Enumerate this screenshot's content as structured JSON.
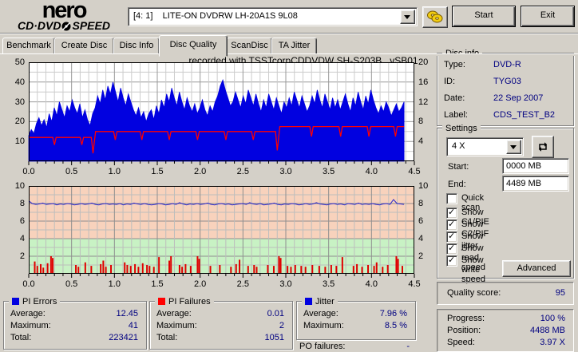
{
  "header": {
    "logo_top": "nero",
    "logo_bottom_left": "CD·DVD",
    "logo_bottom_right": "SPEED",
    "drive_selector": "[4: 1]    LITE-ON DVDRW LH-20A1S 9L08",
    "start_button": "Start",
    "exit_button": "Exit"
  },
  "tabs": [
    {
      "label": "Benchmark",
      "active": false
    },
    {
      "label": "Create Disc",
      "active": false
    },
    {
      "label": "Disc Info",
      "active": false
    },
    {
      "label": "Disc Quality",
      "active": true
    },
    {
      "label": "ScanDisc",
      "active": false
    },
    {
      "label": "TA Jitter",
      "active": false
    }
  ],
  "chart_title": "recorded with TSSTcorpCDDVDW SH-S203B   vSB01",
  "chart_data": [
    {
      "type": "area",
      "title": "PI Errors scan",
      "xlabel": "GB",
      "xlim": [
        0,
        4.5
      ],
      "x_ticks": [
        "0.0",
        "0.5",
        "1.0",
        "1.5",
        "2.0",
        "2.5",
        "3.0",
        "3.5",
        "4.0",
        "4.5"
      ],
      "left_axis": {
        "max": 50,
        "ticks": [
          10,
          20,
          30,
          40,
          50
        ]
      },
      "right_axis": {
        "max": 20,
        "ticks": [
          4,
          8,
          12,
          16,
          20
        ]
      },
      "grid": true,
      "series": [
        {
          "name": "PI Errors",
          "type": "area",
          "axis": "left",
          "color": "#0101e0",
          "x_end": 4.38,
          "values": [
            13,
            16,
            14,
            19,
            22,
            18,
            21,
            17,
            24,
            20,
            27,
            23,
            30,
            26,
            22,
            28,
            25,
            31,
            27,
            24,
            29,
            22,
            26,
            21,
            18,
            24,
            27,
            33,
            29,
            36,
            31,
            38,
            34,
            40,
            35,
            30,
            37,
            32,
            28,
            34,
            30,
            26,
            23,
            27,
            22,
            25,
            20,
            24,
            26,
            21,
            28,
            24,
            31,
            27,
            34,
            30,
            37,
            32,
            28,
            35,
            30,
            26,
            32,
            28,
            25,
            29,
            24,
            27,
            31,
            26,
            23,
            28,
            25,
            30,
            33,
            38,
            41,
            36,
            32,
            28,
            30,
            35,
            31,
            27,
            33,
            29,
            36,
            32,
            28,
            34,
            29,
            25,
            31,
            27,
            34,
            30,
            26,
            32,
            28,
            24,
            30,
            27,
            32,
            28,
            35,
            31,
            27,
            33,
            29,
            25,
            28,
            33,
            29,
            36,
            31,
            27,
            34,
            30,
            26,
            32,
            27,
            31,
            26,
            30,
            34,
            29,
            25,
            32,
            28,
            35,
            30,
            26,
            33,
            29,
            36,
            31,
            27,
            24,
            28,
            25,
            30,
            27,
            23,
            26,
            29,
            25,
            27,
            30
          ]
        },
        {
          "name": "Write speed",
          "type": "line",
          "axis": "right",
          "color": "#ff0000",
          "points": [
            [
              0,
              4.8
            ],
            [
              0.28,
              4.8
            ],
            [
              0.3,
              3.3
            ],
            [
              0.32,
              4.8
            ],
            [
              0.6,
              4.8
            ],
            [
              0.62,
              3.3
            ],
            [
              0.64,
              4.8
            ],
            [
              0.73,
              4.8
            ],
            [
              0.75,
              1.6
            ],
            [
              0.78,
              6.0
            ],
            [
              0.99,
              6.0
            ],
            [
              1.01,
              4.3
            ],
            [
              1.03,
              6.0
            ],
            [
              1.3,
              6.0
            ],
            [
              1.32,
              4.3
            ],
            [
              1.34,
              6.0
            ],
            [
              1.62,
              6.0
            ],
            [
              1.64,
              4.3
            ],
            [
              1.66,
              6.0
            ],
            [
              1.95,
              6.0
            ],
            [
              1.97,
              4.3
            ],
            [
              1.99,
              6.0
            ],
            [
              2.28,
              6.0
            ],
            [
              2.3,
              4.3
            ],
            [
              2.32,
              6.0
            ],
            [
              2.6,
              6.0
            ],
            [
              2.62,
              4.3
            ],
            [
              2.64,
              6.0
            ],
            [
              2.88,
              6.0
            ],
            [
              2.9,
              2.2
            ],
            [
              2.93,
              7.0
            ],
            [
              3.28,
              7.0
            ],
            [
              3.3,
              5.0
            ],
            [
              3.32,
              7.0
            ],
            [
              3.62,
              7.0
            ],
            [
              3.64,
              5.0
            ],
            [
              3.66,
              7.0
            ],
            [
              3.95,
              7.0
            ],
            [
              3.97,
              5.0
            ],
            [
              3.99,
              7.0
            ],
            [
              4.26,
              7.0
            ],
            [
              4.28,
              5.0
            ],
            [
              4.3,
              7.0
            ],
            [
              4.38,
              7.0
            ]
          ]
        }
      ]
    },
    {
      "type": "line",
      "title": "Jitter and PI Failures scan",
      "xlabel": "GB",
      "xlim": [
        0,
        4.5
      ],
      "x_ticks": [
        "0.0",
        "0.5",
        "1.0",
        "1.5",
        "2.0",
        "2.5",
        "3.0",
        "3.5",
        "4.0",
        "4.5"
      ],
      "left_axis": {
        "max": 10,
        "ticks": [
          2,
          4,
          6,
          8,
          10
        ]
      },
      "right_axis": {
        "max": 10,
        "ticks": [
          2,
          4,
          6,
          8,
          10
        ]
      },
      "grid": true,
      "bands": [
        {
          "from": 0,
          "to": 4,
          "color": "#c8f2c4"
        },
        {
          "from": 4,
          "to": 10,
          "color": "#f8d2bc"
        }
      ],
      "series": [
        {
          "name": "Jitter",
          "type": "line_values",
          "axis": "left",
          "color": "#2222cc",
          "x_end": 4.38,
          "values": [
            8.3,
            8.0,
            7.9,
            7.95,
            8.05,
            7.9,
            7.95,
            8.0,
            7.85,
            7.95,
            7.9,
            8.0,
            7.95,
            7.85,
            7.9,
            8.0,
            7.9,
            7.95,
            8.05,
            7.9,
            7.85,
            7.95,
            8.0,
            7.9,
            7.95,
            7.9,
            8.0,
            7.85,
            7.95,
            7.9,
            8.05,
            7.95,
            7.9,
            8.0,
            7.9,
            7.85,
            7.9,
            8.0,
            7.95,
            7.85,
            7.9,
            8.0,
            7.9,
            8.1,
            7.95,
            7.85,
            7.95,
            7.9,
            8.0,
            7.9,
            7.95,
            8.05,
            7.9,
            7.85,
            7.95,
            8.0,
            7.9,
            7.95,
            7.85,
            7.9,
            7.95,
            8.0,
            7.9,
            8.1,
            7.95,
            7.9,
            8.0,
            7.85,
            7.9,
            7.95,
            8.05,
            7.9,
            7.85,
            7.95,
            7.9,
            8.0,
            7.95,
            7.85,
            7.9,
            8.0,
            7.9,
            7.95,
            8.1,
            7.95,
            7.9,
            7.85,
            7.95,
            8.0,
            7.9,
            7.95,
            7.85,
            8.0,
            7.95,
            7.9,
            8.05,
            7.9,
            7.95,
            7.9,
            8.0,
            7.9,
            7.85,
            7.95,
            8.0,
            7.9,
            8.45,
            8.0,
            7.95,
            7.9
          ]
        },
        {
          "name": "PI Failures",
          "type": "bars",
          "axis": "left",
          "color": "#e00000",
          "bars": [
            [
              0.07,
              1.4
            ],
            [
              0.1,
              0.9
            ],
            [
              0.14,
              1.1
            ],
            [
              0.17,
              0.7
            ],
            [
              0.22,
              1.2
            ],
            [
              0.26,
              2.0
            ],
            [
              0.28,
              1.8
            ],
            [
              0.55,
              1.0
            ],
            [
              0.58,
              0.8
            ],
            [
              0.66,
              1.3
            ],
            [
              0.73,
              0.9
            ],
            [
              0.84,
              1.1
            ],
            [
              0.87,
              1.5
            ],
            [
              0.9,
              0.8
            ],
            [
              0.96,
              1.0
            ],
            [
              1.12,
              1.3
            ],
            [
              1.15,
              1.0
            ],
            [
              1.19,
              0.9
            ],
            [
              1.24,
              1.1
            ],
            [
              1.28,
              0.8
            ],
            [
              1.33,
              1.2
            ],
            [
              1.38,
              1.0
            ],
            [
              1.41,
              0.9
            ],
            [
              1.46,
              0.8
            ],
            [
              1.52,
              1.9
            ],
            [
              1.64,
              1.5
            ],
            [
              1.66,
              2.0
            ],
            [
              1.76,
              1.0
            ],
            [
              1.79,
              0.8
            ],
            [
              1.83,
              1.1
            ],
            [
              1.89,
              0.9
            ],
            [
              1.97,
              2.0
            ],
            [
              1.99,
              1.7
            ],
            [
              2.12,
              0.9
            ],
            [
              2.23,
              1.0
            ],
            [
              2.36,
              0.8
            ],
            [
              2.42,
              1.1
            ],
            [
              2.46,
              1.6
            ],
            [
              2.56,
              0.9
            ],
            [
              2.63,
              1.0
            ],
            [
              2.66,
              0.8
            ],
            [
              2.79,
              1.0
            ],
            [
              2.86,
              0.9
            ],
            [
              2.92,
              2.0
            ],
            [
              2.94,
              1.8
            ],
            [
              3.02,
              0.9
            ],
            [
              3.06,
              0.8
            ],
            [
              3.11,
              1.0
            ],
            [
              3.18,
              0.9
            ],
            [
              3.23,
              0.8
            ],
            [
              3.31,
              1.0
            ],
            [
              3.39,
              0.9
            ],
            [
              3.46,
              0.8
            ],
            [
              3.53,
              1.0
            ],
            [
              3.59,
              0.9
            ],
            [
              3.66,
              1.9
            ],
            [
              3.79,
              0.9
            ],
            [
              3.83,
              1.1
            ],
            [
              3.89,
              0.8
            ],
            [
              3.96,
              1.0
            ],
            [
              4.03,
              0.9
            ],
            [
              4.06,
              1.3
            ],
            [
              4.13,
              0.8
            ],
            [
              4.19,
              1.0
            ],
            [
              4.29,
              2.0
            ],
            [
              4.31,
              1.7
            ],
            [
              4.36,
              0.9
            ]
          ]
        }
      ]
    }
  ],
  "stats": {
    "pi_errors": {
      "title": "PI Errors",
      "swatch": "#0101e0",
      "rows": [
        {
          "label": "Average:",
          "value": "12.45"
        },
        {
          "label": "Maximum:",
          "value": "41"
        },
        {
          "label": "Total:",
          "value": "223421"
        }
      ]
    },
    "pi_failures": {
      "title": "PI Failures",
      "swatch": "#ff0000",
      "rows": [
        {
          "label": "Average:",
          "value": "0.01"
        },
        {
          "label": "Maximum:",
          "value": "2"
        },
        {
          "label": "Total:",
          "value": "1051"
        }
      ]
    },
    "jitter": {
      "title": "Jitter",
      "swatch": "#0101e0",
      "rows": [
        {
          "label": "Average:",
          "value": "7.96 %"
        },
        {
          "label": "Maximum:",
          "value": "8.5 %"
        }
      ]
    },
    "po_failures": {
      "label": "PO failures:",
      "value": "-"
    }
  },
  "disc_info": {
    "title": "Disc info",
    "rows": [
      {
        "label": "Type:",
        "value": "DVD-R"
      },
      {
        "label": "ID:",
        "value": "TYG03"
      },
      {
        "label": "Date:",
        "value": "22 Sep 2007"
      },
      {
        "label": "Label:",
        "value": "CDS_TEST_B2"
      }
    ]
  },
  "settings": {
    "title": "Settings",
    "speed_value": "4 X",
    "start_label": "Start:",
    "start_value": "0000 MB",
    "end_label": "End:",
    "end_value": "4489 MB",
    "checkboxes": [
      {
        "label": "Quick scan",
        "checked": false
      },
      {
        "label": "Show C1/PIE",
        "checked": true
      },
      {
        "label": "Show C2/PIF",
        "checked": true
      },
      {
        "label": "Show jitter",
        "checked": true
      },
      {
        "label": "Show read speed",
        "checked": true
      },
      {
        "label": "Show write speed",
        "checked": true
      }
    ],
    "advanced_button": "Advanced"
  },
  "quality": {
    "label": "Quality score:",
    "value": "95"
  },
  "progress": {
    "rows": [
      {
        "label": "Progress:",
        "value": "100 %"
      },
      {
        "label": "Position:",
        "value": "4488 MB"
      },
      {
        "label": "Speed:",
        "value": "3.97 X"
      }
    ]
  },
  "colors": {
    "window_bg": "#d4d0c8",
    "value_text": "#000080",
    "pi_blue": "#0101e0",
    "fail_red": "#e00000",
    "band_green": "#c8f2c4",
    "band_pink": "#f8d2bc"
  }
}
